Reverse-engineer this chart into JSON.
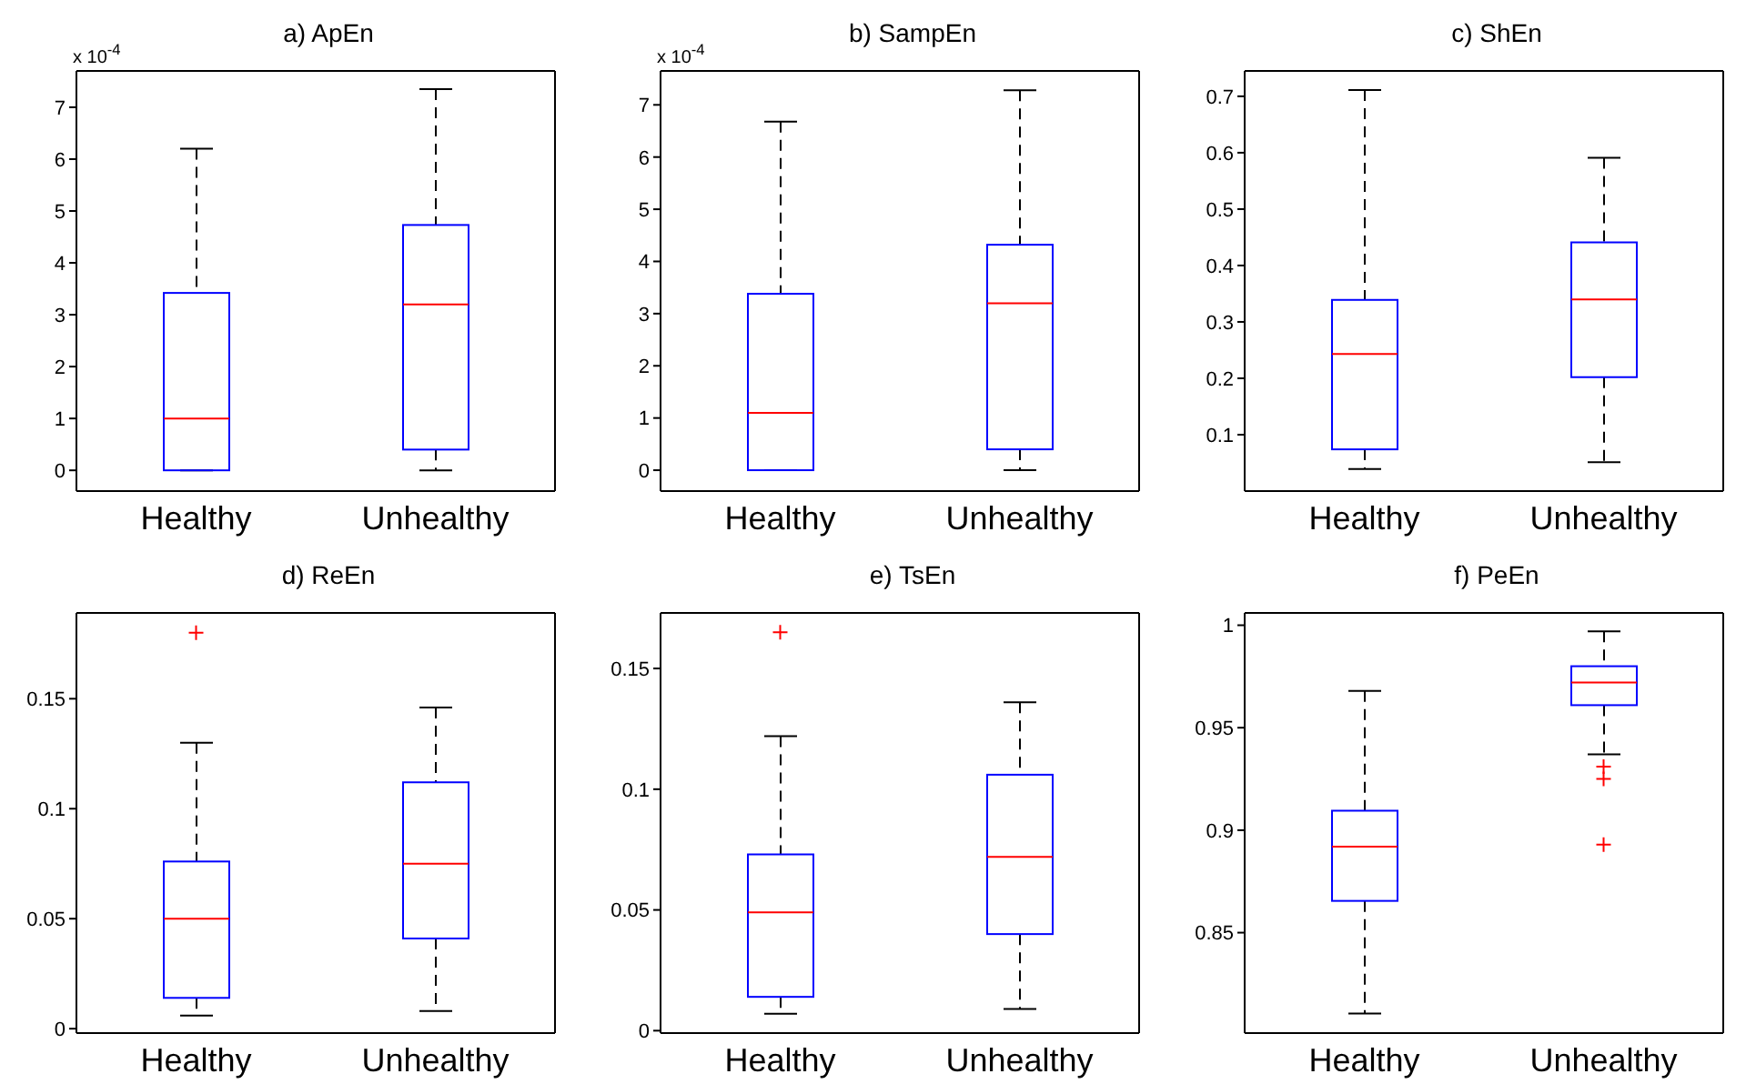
{
  "chart_data": [
    {
      "type": "box",
      "title": "a) ApEn",
      "annotations": [
        "x 10$^{-4}$"
      ],
      "categories": [
        "Healthy",
        "Unhealthy"
      ],
      "color": "#0000ff",
      "ylim": [
        -0.4,
        7.7
      ],
      "yticks": [
        0,
        1,
        2,
        3,
        4,
        5,
        6,
        7
      ],
      "boxes": [
        {
          "low": 0,
          "q1": 0,
          "median": 1.0,
          "q3": 3.42,
          "high": 6.2
        },
        {
          "low": 0,
          "q1": 0.4,
          "median": 3.2,
          "q3": 4.73,
          "high": 7.35
        }
      ]
    },
    {
      "type": "box",
      "title": "b) SampEn",
      "annotations": [
        "x 10$^{-4}$"
      ],
      "categories": [
        "Healthy",
        "Unhealthy"
      ],
      "color": "#0000ff",
      "ylim": [
        -0.4,
        7.65
      ],
      "yticks": [
        0,
        1,
        2,
        3,
        4,
        5,
        6,
        7
      ],
      "boxes": [
        {
          "low": 0,
          "q1": 0,
          "median": 1.1,
          "q3": 3.38,
          "high": 6.68
        },
        {
          "low": 0,
          "q1": 0.4,
          "median": 3.2,
          "q3": 4.32,
          "high": 7.28
        }
      ]
    },
    {
      "type": "box",
      "title": "c) ShEn",
      "categories": [
        "Healthy",
        "Unhealthy"
      ],
      "color": "#0000ff",
      "ylim": [
        0,
        0.745
      ],
      "yticks": [
        0.1,
        0.2,
        0.3,
        0.4,
        0.5,
        0.6,
        0.7
      ],
      "boxes": [
        {
          "low": 0.039,
          "q1": 0.074,
          "median": 0.243,
          "q3": 0.339,
          "high": 0.711
        },
        {
          "low": 0.051,
          "q1": 0.202,
          "median": 0.34,
          "q3": 0.441,
          "high": 0.591
        }
      ]
    },
    {
      "type": "box",
      "title": "d) ReEn",
      "categories": [
        "Healthy",
        "Unhealthy"
      ],
      "color": "#0000ff",
      "ylim": [
        -0.002,
        0.189
      ],
      "yticks": [
        0,
        0.05,
        0.1,
        0.15
      ],
      "boxes": [
        {
          "low": 0.006,
          "q1": 0.014,
          "median": 0.05,
          "q3": 0.076,
          "high": 0.13,
          "outliers": [
            0.18
          ]
        },
        {
          "low": 0.008,
          "q1": 0.041,
          "median": 0.075,
          "q3": 0.112,
          "high": 0.146
        }
      ]
    },
    {
      "type": "box",
      "title": "e) TsEn",
      "categories": [
        "Healthy",
        "Unhealthy"
      ],
      "color": "#0000ff",
      "ylim": [
        -0.001,
        0.173
      ],
      "yticks": [
        0,
        0.05,
        0.1,
        0.15
      ],
      "boxes": [
        {
          "low": 0.007,
          "q1": 0.014,
          "median": 0.049,
          "q3": 0.073,
          "high": 0.122,
          "outliers": [
            0.165
          ]
        },
        {
          "low": 0.009,
          "q1": 0.04,
          "median": 0.072,
          "q3": 0.106,
          "high": 0.136
        }
      ]
    },
    {
      "type": "box",
      "title": "f) PeEn",
      "categories": [
        "Healthy",
        "Unhealthy"
      ],
      "color": "#0000ff",
      "ylim": [
        0.801,
        1.006
      ],
      "yticks": [
        0.85,
        0.9,
        0.95,
        1
      ],
      "boxes": [
        {
          "low": 0.8105,
          "q1": 0.8655,
          "median": 0.892,
          "q3": 0.9095,
          "high": 0.968
        },
        {
          "low": 0.937,
          "q1": 0.961,
          "median": 0.972,
          "q3": 0.98,
          "high": 0.997,
          "outliers": [
            0.931,
            0.925,
            0.893
          ]
        }
      ]
    }
  ]
}
